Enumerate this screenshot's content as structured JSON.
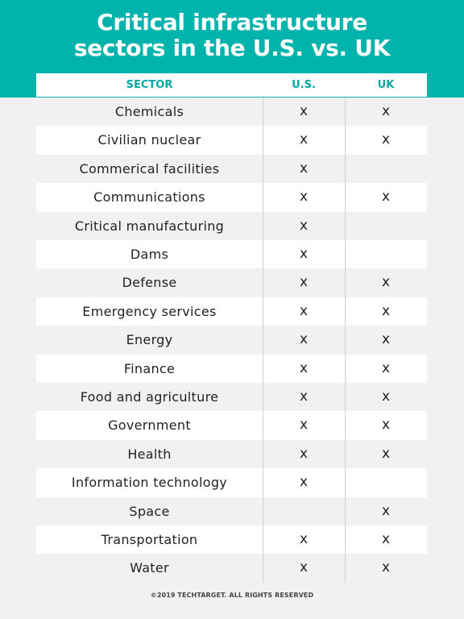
{
  "title": {
    "line1": "Critical infrastructure",
    "line2": "sectors in the U.S. vs. UK"
  },
  "colors": {
    "banner": "#00b3ad",
    "header_text": "#00a9a3"
  },
  "chart_data": {
    "type": "table",
    "title": "Critical infrastructure sectors in the U.S. vs. UK",
    "columns": [
      "SECTOR",
      "U.S.",
      "UK"
    ],
    "rows": [
      {
        "sector": "Chemicals",
        "us": "x",
        "uk": "x"
      },
      {
        "sector": "Civilian nuclear",
        "us": "x",
        "uk": "x"
      },
      {
        "sector": "Commerical facilities",
        "us": "x",
        "uk": ""
      },
      {
        "sector": "Communications",
        "us": "x",
        "uk": "x"
      },
      {
        "sector": "Critical manufacturing",
        "us": "x",
        "uk": ""
      },
      {
        "sector": "Dams",
        "us": "x",
        "uk": ""
      },
      {
        "sector": "Defense",
        "us": "x",
        "uk": "x"
      },
      {
        "sector": "Emergency services",
        "us": "x",
        "uk": "x"
      },
      {
        "sector": "Energy",
        "us": "x",
        "uk": "x"
      },
      {
        "sector": "Finance",
        "us": "x",
        "uk": "x"
      },
      {
        "sector": "Food and agriculture",
        "us": "x",
        "uk": "x"
      },
      {
        "sector": "Government",
        "us": "x",
        "uk": "x"
      },
      {
        "sector": "Health",
        "us": "x",
        "uk": "x"
      },
      {
        "sector": "Information technology",
        "us": "x",
        "uk": ""
      },
      {
        "sector": "Space",
        "us": "",
        "uk": "x"
      },
      {
        "sector": "Transportation",
        "us": "x",
        "uk": "x"
      },
      {
        "sector": "Water",
        "us": "x",
        "uk": "x"
      }
    ]
  },
  "footer": "©2019 TECHTARGET. ALL RIGHTS RESERVED"
}
